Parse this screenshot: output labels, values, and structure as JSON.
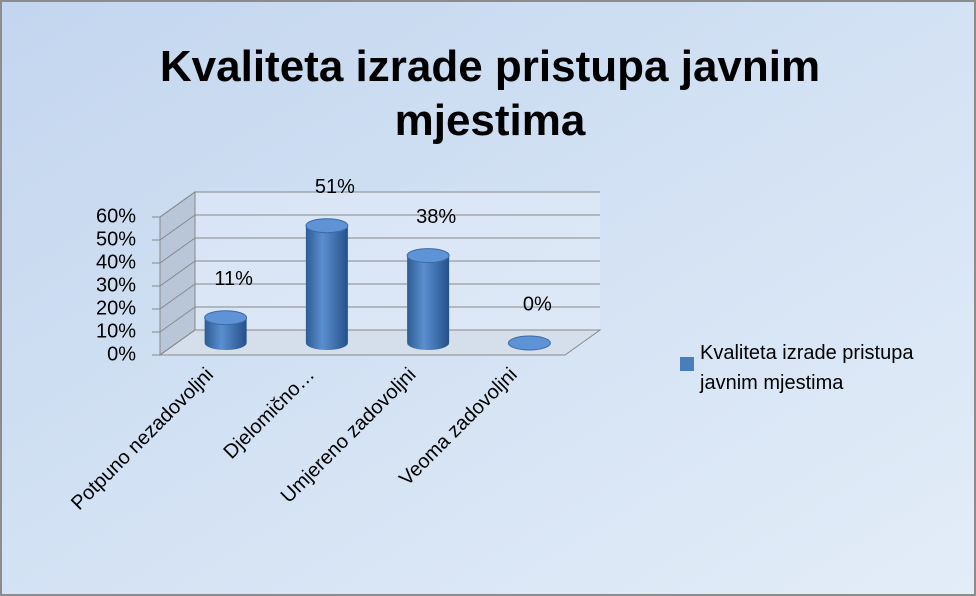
{
  "chart_data": {
    "type": "bar3d",
    "title": "Kvaliteta izrade pristupa javnim mjestima",
    "categories": [
      "Potpuno nezadovoljni",
      "Djelomično…",
      "Umjereno zadovoljni",
      "Veoma zadovoljni"
    ],
    "series": [
      {
        "name": "Kvaliteta izrade pristupa javnim mjestima",
        "color": "#4a7ebb",
        "values": [
          11,
          51,
          38,
          0
        ],
        "value_labels": [
          "11%",
          "51%",
          "38%",
          "0%"
        ]
      }
    ],
    "ylim": [
      0,
      60
    ],
    "yticks": [
      {
        "value": 0,
        "label": "0%"
      },
      {
        "value": 10,
        "label": "10%"
      },
      {
        "value": 20,
        "label": "20%"
      },
      {
        "value": 30,
        "label": "30%"
      },
      {
        "value": 40,
        "label": "40%"
      },
      {
        "value": 50,
        "label": "50%"
      },
      {
        "value": 60,
        "label": "60%"
      }
    ],
    "grid": true,
    "legend": "right"
  }
}
